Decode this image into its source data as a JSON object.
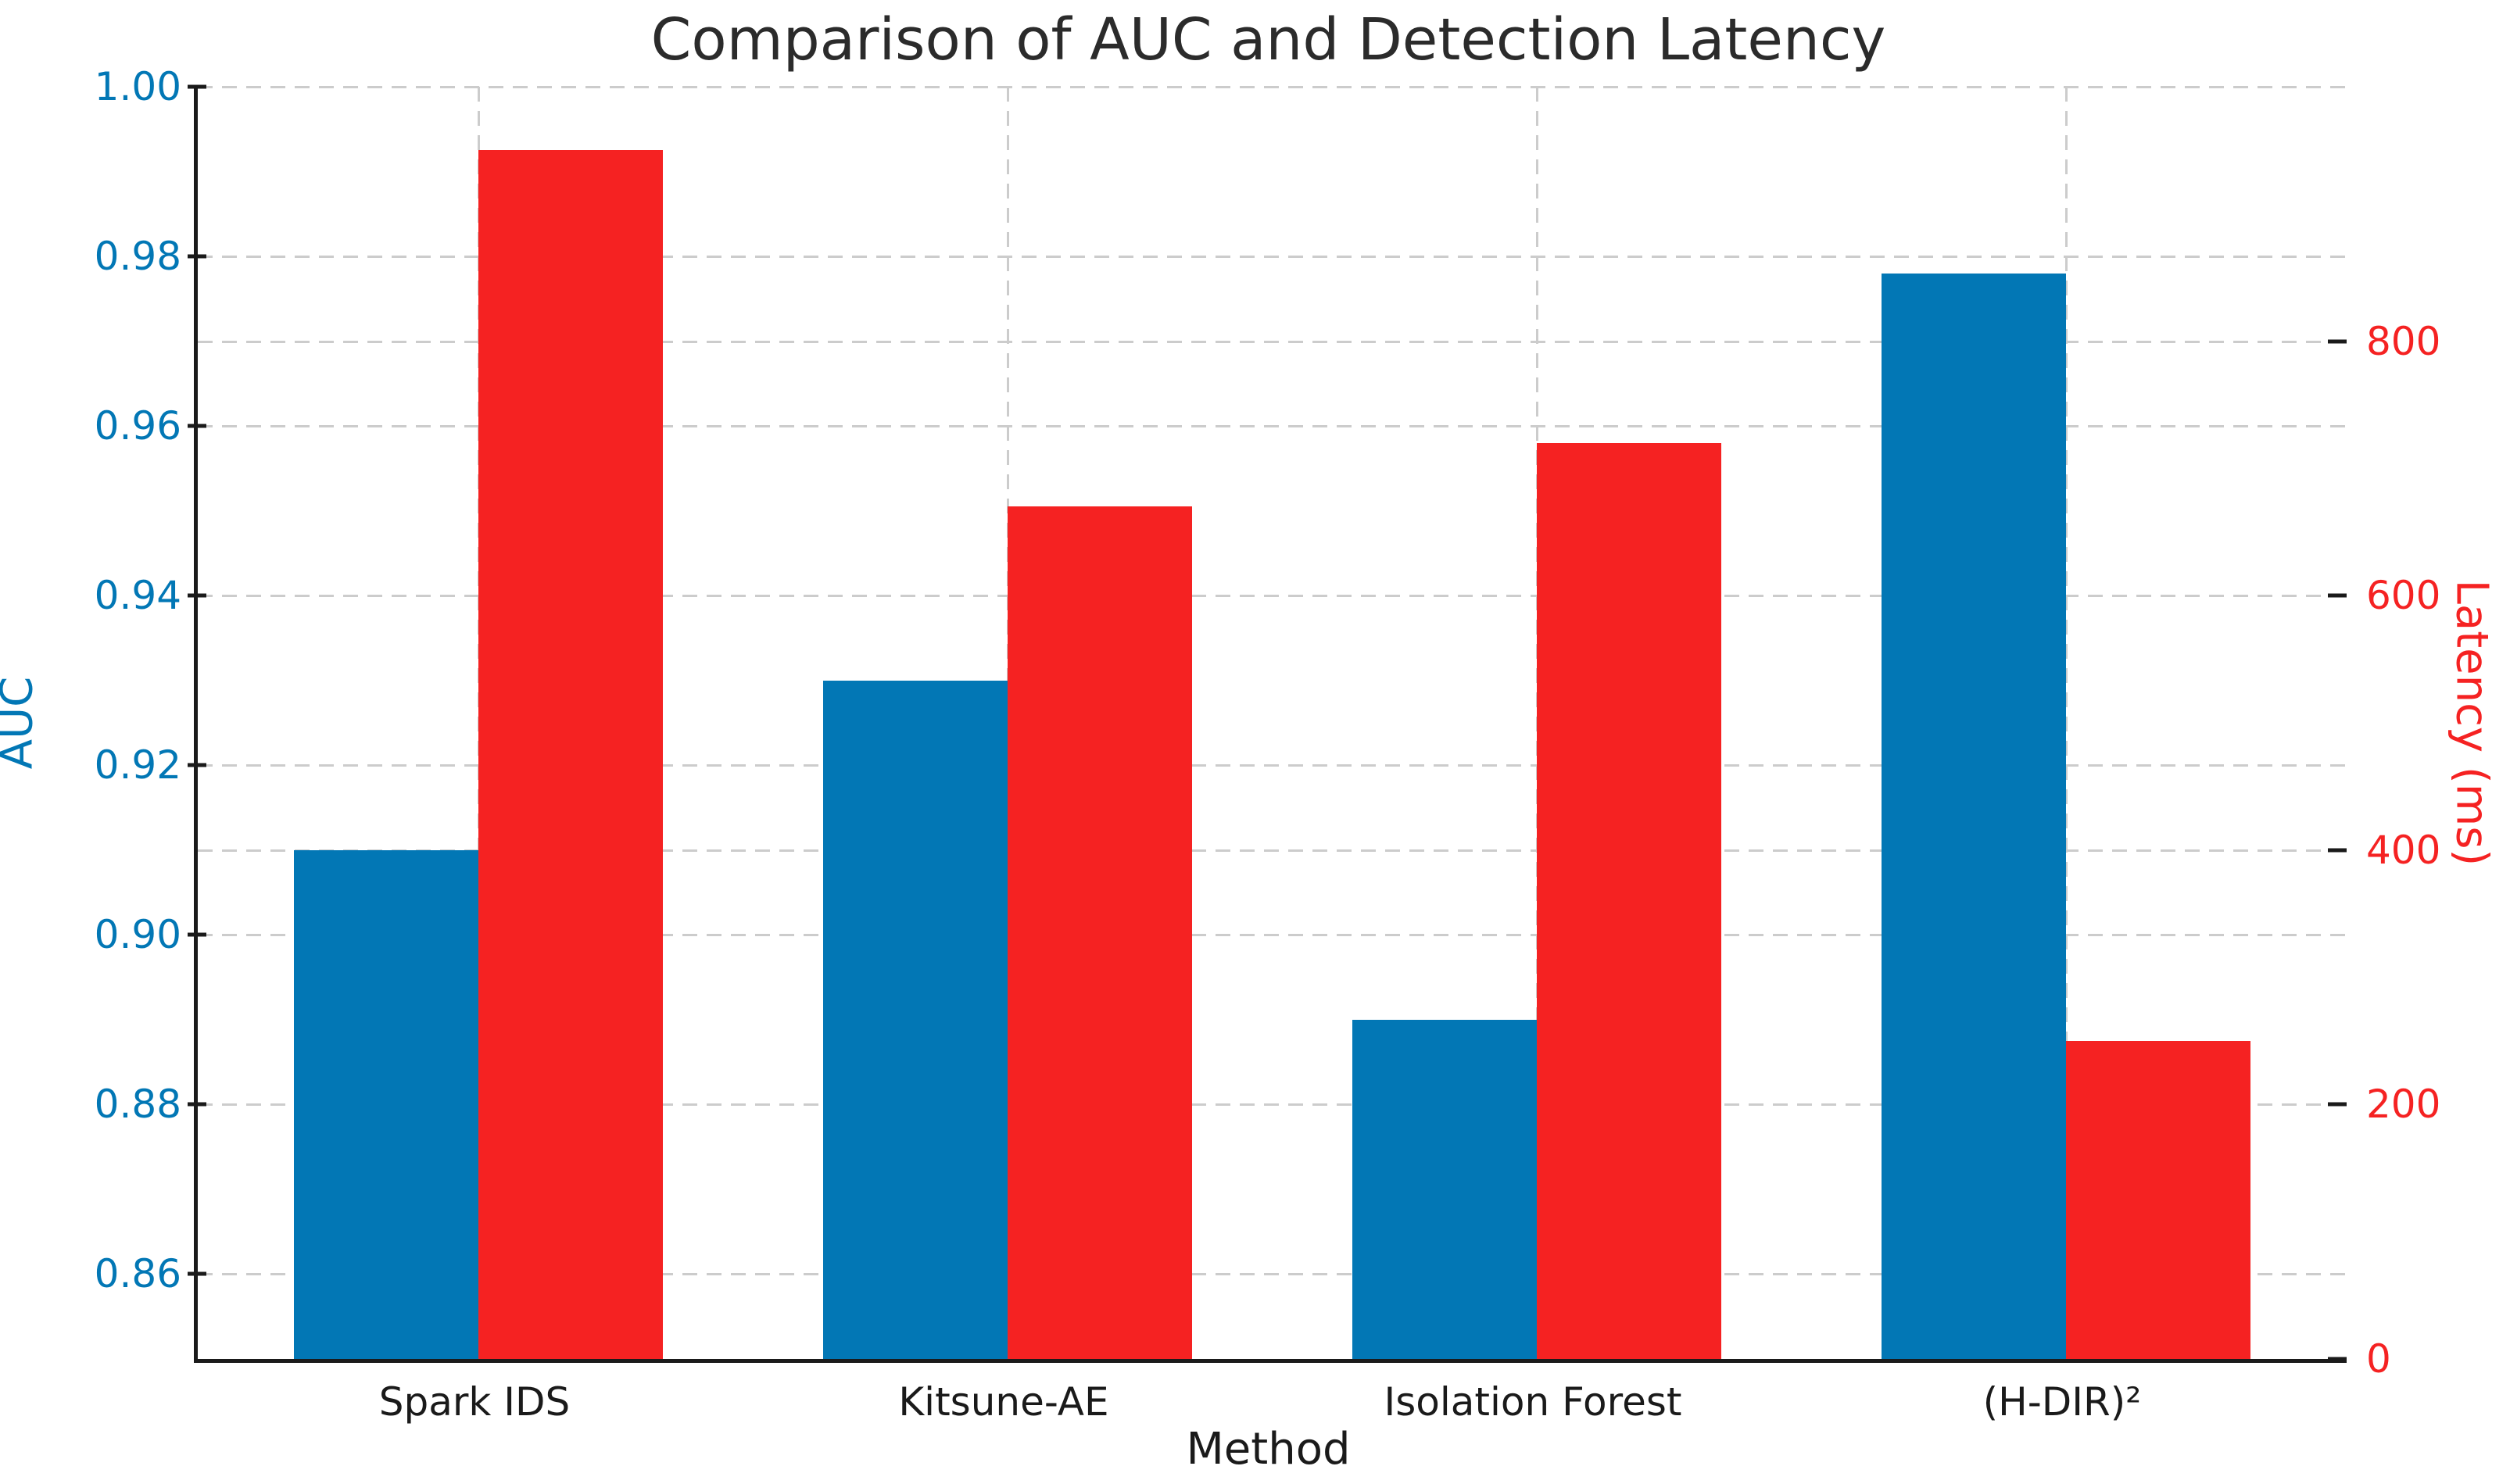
{
  "colors": {
    "auc_blue": "#0277b5",
    "latency_red": "#f52222",
    "grid": "#cccccc",
    "spine": "#1a1a1a",
    "title": "#2b2b2b",
    "x_tick": "#1a1a1a"
  },
  "chart_data": {
    "type": "bar",
    "title": "Comparison of AUC and Detection Latency",
    "xlabel": "Method",
    "ylabel_left": "AUC",
    "ylabel_right": "Latency (ms)",
    "categories": [
      "Spark IDS",
      "Kitsune-AE",
      "Isolation Forest",
      "(H-DIR)²"
    ],
    "series": [
      {
        "name": "AUC",
        "axis": "left",
        "color": "#0277b5",
        "values": [
          0.91,
          0.93,
          0.89,
          0.978
        ]
      },
      {
        "name": "Latency (ms)",
        "axis": "right",
        "color": "#f52222",
        "values": [
          950,
          670,
          720,
          250
        ]
      }
    ],
    "left_axis": {
      "min": 0.85,
      "max": 1.0,
      "ticks": [
        1.0,
        0.98,
        0.96,
        0.94,
        0.92,
        0.9,
        0.88,
        0.86
      ],
      "tick_labels": [
        "1.00",
        "0.98",
        "0.96",
        "0.94",
        "0.92",
        "0.90",
        "0.88",
        "0.86"
      ],
      "label_color": "#0277b5"
    },
    "right_axis": {
      "min": 0,
      "max": 1000,
      "ticks": [
        800,
        600,
        400,
        200,
        0
      ],
      "tick_labels": [
        "800",
        "600",
        "400",
        "200",
        "0"
      ],
      "label_color": "#f52222"
    },
    "grid": {
      "dashed": true,
      "horizontal": "both-axes-ticks",
      "vertical": "category-centers"
    },
    "legend": "none",
    "bar_width_fraction": 0.35
  }
}
